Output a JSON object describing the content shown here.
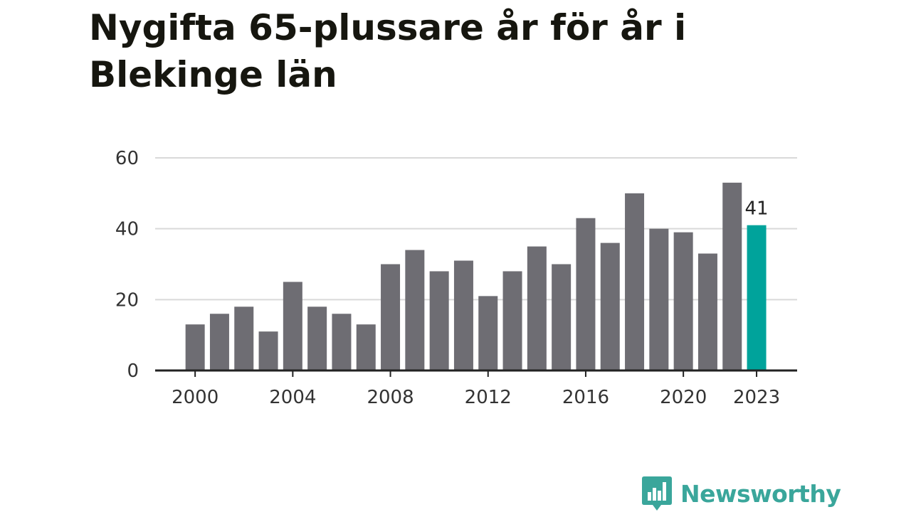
{
  "brand": {
    "name": "Newsworthy",
    "color": "#3aa69b"
  },
  "chart_data": {
    "type": "bar",
    "title": "Nygifta 65-plussare år för år i Blekinge län",
    "xlabel": "",
    "ylabel": "",
    "x": [
      2000,
      2001,
      2002,
      2003,
      2004,
      2005,
      2006,
      2007,
      2008,
      2009,
      2010,
      2011,
      2012,
      2013,
      2014,
      2015,
      2016,
      2017,
      2018,
      2019,
      2020,
      2021,
      2022,
      2023
    ],
    "values": [
      13,
      16,
      18,
      11,
      25,
      18,
      16,
      13,
      30,
      34,
      28,
      31,
      21,
      28,
      35,
      30,
      43,
      36,
      50,
      40,
      39,
      33,
      53,
      41
    ],
    "ylim": [
      0,
      60
    ],
    "yticks": [
      0,
      20,
      40,
      60
    ],
    "xticks": [
      "2000",
      "2004",
      "2008",
      "2012",
      "2016",
      "2020",
      "2023"
    ],
    "highlight": {
      "x": 2023,
      "label": "41"
    },
    "grid": true,
    "colors": {
      "bar": "#6e6d73",
      "highlight": "#00a39b",
      "grid": "#d9d9d9",
      "axis": "#222222"
    }
  }
}
